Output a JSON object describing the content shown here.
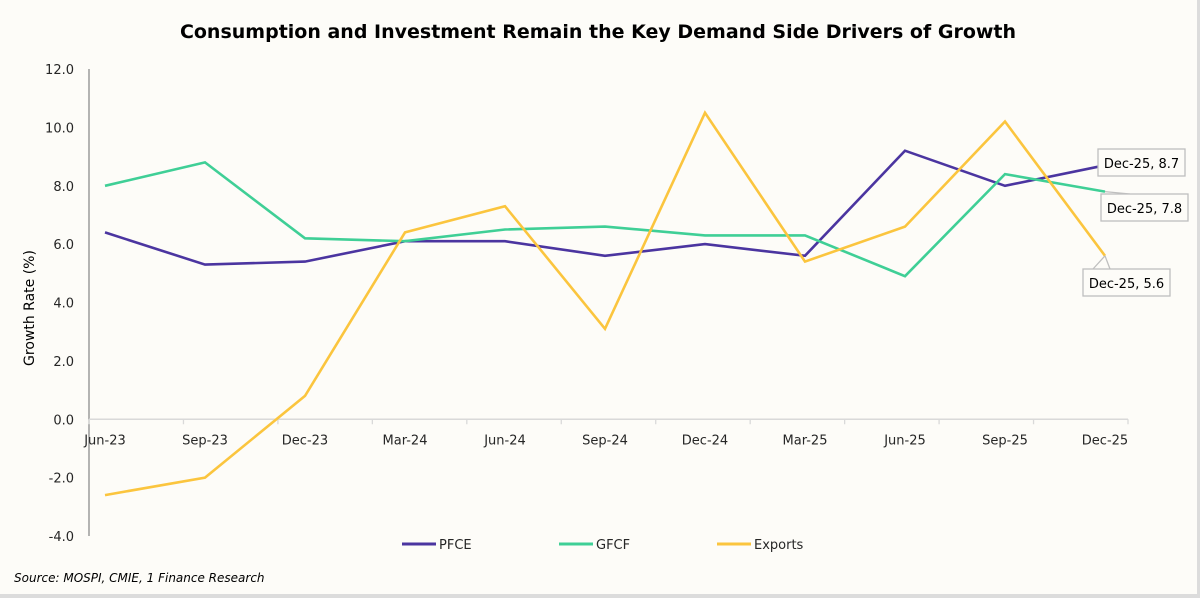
{
  "chart_data": {
    "type": "line",
    "title": "Consumption and Investment Remain the Key Demand Side Drivers of Growth",
    "xlabel": "",
    "ylabel": "Growth Rate (%)",
    "ylim": [
      -4.0,
      12.0
    ],
    "yticks": [
      "12.0",
      "10.0",
      "8.0",
      "6.0",
      "4.0",
      "2.0",
      "0.0",
      "-2.0",
      "-4.0"
    ],
    "ytick_values": [
      12,
      10,
      8,
      6,
      4,
      2,
      0,
      -2,
      -4
    ],
    "categories": [
      "Jun-23",
      "Sep-23",
      "Dec-23",
      "Mar-24",
      "Jun-24",
      "Sep-24",
      "Dec-24",
      "Mar-25",
      "Jun-25",
      "Sep-25",
      "Dec-25"
    ],
    "grid": false,
    "legend_position": "bottom",
    "series": [
      {
        "name": "PFCE",
        "color": "#4b35a0",
        "values": [
          6.4,
          5.3,
          5.4,
          6.1,
          6.1,
          5.6,
          6.0,
          5.6,
          9.2,
          8.0,
          8.7
        ]
      },
      {
        "name": "GFCF",
        "color": "#3fcf96",
        "values": [
          8.0,
          8.8,
          6.2,
          6.1,
          6.5,
          6.6,
          6.3,
          6.3,
          4.9,
          8.4,
          7.8
        ]
      },
      {
        "name": "Exports",
        "color": "#fbc53e",
        "values": [
          -2.6,
          -2.0,
          0.8,
          6.4,
          7.3,
          3.1,
          10.5,
          5.4,
          6.6,
          10.2,
          5.6
        ]
      }
    ],
    "annotations": [
      {
        "series": "PFCE",
        "text": "Dec-25, 8.7"
      },
      {
        "series": "GFCF",
        "text": "Dec-25, 7.8"
      },
      {
        "series": "Exports",
        "text": "Dec-25, 5.6"
      }
    ]
  },
  "source": "Source: MOSPI, CMIE, 1 Finance Research"
}
